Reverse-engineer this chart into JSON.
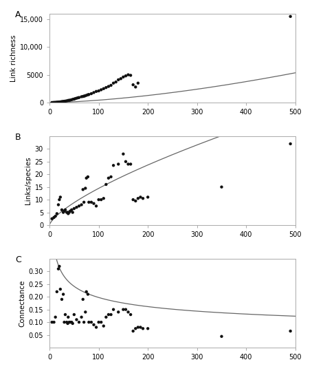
{
  "panel_labels": [
    "A",
    "B",
    "C"
  ],
  "ylabels": [
    "Link richness",
    "Links/species",
    "Connectance"
  ],
  "background_color": "#ffffff",
  "A_scatter_x": [
    5,
    8,
    10,
    12,
    14,
    16,
    18,
    20,
    22,
    24,
    26,
    28,
    30,
    32,
    35,
    38,
    40,
    42,
    45,
    48,
    50,
    52,
    55,
    58,
    60,
    65,
    68,
    70,
    72,
    75,
    78,
    80,
    85,
    90,
    95,
    100,
    105,
    110,
    115,
    120,
    125,
    130,
    135,
    140,
    145,
    150,
    155,
    160,
    165,
    170,
    175,
    180,
    490
  ],
  "A_scatter_y": [
    10,
    20,
    25,
    35,
    50,
    70,
    80,
    100,
    120,
    150,
    180,
    200,
    220,
    260,
    310,
    380,
    400,
    430,
    510,
    600,
    620,
    700,
    780,
    860,
    900,
    1050,
    1100,
    1150,
    1200,
    1300,
    1400,
    1450,
    1600,
    1800,
    2000,
    2100,
    2300,
    2500,
    2700,
    2900,
    3100,
    3500,
    3700,
    4100,
    4300,
    4600,
    4800,
    5000,
    4900,
    3200,
    2800,
    3500,
    15500
  ],
  "A_fit_exponent": 1.57,
  "A_fit_coeff": 0.31,
  "A_ylim": [
    0,
    16000
  ],
  "A_yticks": [
    0,
    5000,
    10000,
    15000
  ],
  "A_yticklabels": [
    "0",
    "5000",
    "10,000",
    "15,000"
  ],
  "B_scatter_x": [
    5,
    9,
    12,
    15,
    18,
    20,
    22,
    25,
    28,
    30,
    32,
    35,
    37,
    38,
    40,
    42,
    45,
    47,
    50,
    55,
    60,
    65,
    68,
    70,
    73,
    75,
    78,
    80,
    85,
    90,
    95,
    100,
    105,
    110,
    115,
    120,
    125,
    130,
    140,
    150,
    155,
    160,
    165,
    170,
    175,
    180,
    185,
    190,
    200,
    350,
    490
  ],
  "B_scatter_y": [
    2.5,
    3.0,
    3.5,
    4.5,
    8.0,
    10.0,
    11.0,
    6.0,
    5.0,
    5.5,
    6.0,
    5.0,
    5.0,
    4.5,
    5.0,
    5.5,
    6.0,
    5.0,
    6.5,
    7.0,
    7.5,
    8.0,
    14.0,
    9.0,
    14.5,
    18.5,
    19.0,
    9.0,
    9.0,
    8.5,
    7.5,
    10.0,
    10.0,
    10.5,
    16.0,
    18.5,
    19.0,
    23.5,
    24.0,
    28.0,
    25.0,
    24.0,
    24.0,
    10.0,
    9.5,
    10.5,
    11.0,
    10.5,
    11.0,
    15.0,
    32.0
  ],
  "B_fit_exponent": 0.71,
  "B_fit_coeff": 0.55,
  "B_ylim": [
    0,
    35
  ],
  "B_yticks": [
    0,
    5,
    10,
    15,
    20,
    25,
    30
  ],
  "C_scatter_x": [
    5,
    9,
    12,
    15,
    18,
    20,
    22,
    25,
    28,
    30,
    32,
    35,
    37,
    38,
    40,
    42,
    45,
    47,
    50,
    55,
    60,
    65,
    68,
    70,
    73,
    75,
    78,
    80,
    85,
    90,
    95,
    100,
    105,
    110,
    115,
    120,
    125,
    130,
    140,
    150,
    155,
    160,
    165,
    170,
    175,
    180,
    185,
    190,
    200,
    350,
    490
  ],
  "C_scatter_y": [
    0.1,
    0.1,
    0.12,
    0.22,
    0.31,
    0.32,
    0.23,
    0.19,
    0.21,
    0.1,
    0.13,
    0.1,
    0.095,
    0.12,
    0.1,
    0.1,
    0.1,
    0.095,
    0.13,
    0.11,
    0.1,
    0.12,
    0.19,
    0.1,
    0.14,
    0.22,
    0.21,
    0.1,
    0.1,
    0.09,
    0.08,
    0.1,
    0.1,
    0.085,
    0.12,
    0.13,
    0.13,
    0.15,
    0.14,
    0.15,
    0.15,
    0.14,
    0.13,
    0.065,
    0.075,
    0.08,
    0.08,
    0.075,
    0.075,
    0.044,
    0.065
  ],
  "C_fit_exponent": -0.29,
  "C_fit_coeff": 0.75,
  "C_ylim": [
    0.0,
    0.35
  ],
  "C_yticks": [
    0.05,
    0.1,
    0.15,
    0.2,
    0.25,
    0.3
  ],
  "xlim": [
    0,
    500
  ],
  "xticks": [
    0,
    100,
    200,
    300,
    400,
    500
  ],
  "scatter_color": "#111111",
  "scatter_size": 10,
  "line_color": "#666666",
  "line_width": 0.9,
  "label_fontsize": 7.5,
  "panel_label_fontsize": 9,
  "tick_labelsize": 7
}
